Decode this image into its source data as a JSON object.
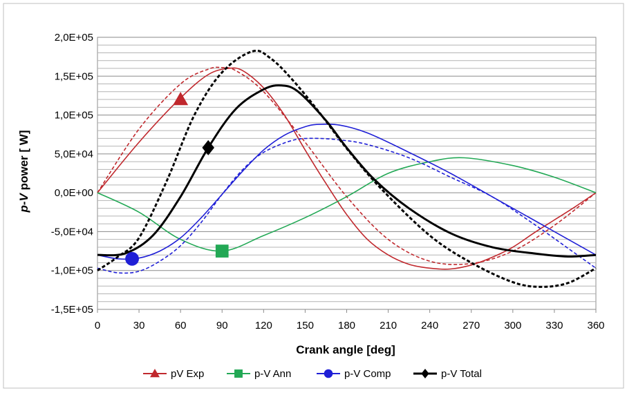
{
  "chart_data": {
    "type": "line",
    "xlabel": "Crank angle [deg]",
    "ylabel_italic": "p-V",
    "ylabel_rest": " power [ W]",
    "xlim": [
      0,
      360
    ],
    "ylim": [
      -150000,
      200000
    ],
    "x_ticks": [
      0,
      30,
      60,
      90,
      120,
      150,
      180,
      210,
      240,
      270,
      300,
      330,
      360
    ],
    "x_tick_labels": [
      "0",
      "30",
      "60",
      "90",
      "120",
      "150",
      "180",
      "210",
      "240",
      "270",
      "300",
      "330",
      "360"
    ],
    "y_ticks": [
      -150000,
      -100000,
      -50000,
      0,
      50000,
      100000,
      150000,
      200000
    ],
    "y_tick_labels": [
      "-1,5E+05",
      "-1,0E+05",
      "-5,0E+04",
      "0,0E+00",
      "5,0E+04",
      "1,0E+05",
      "1,5E+05",
      "2,0E+05"
    ],
    "minor_grid_step": 10000,
    "grid": true,
    "legend_position": "bottom",
    "series": [
      {
        "name": "pV Exp",
        "color": "#c0282d",
        "marker": "triangle",
        "marker_point": [
          60,
          120000
        ],
        "solid": [
          [
            0,
            0
          ],
          [
            30,
            65000
          ],
          [
            60,
            122000
          ],
          [
            80,
            152000
          ],
          [
            95,
            160000
          ],
          [
            105,
            157000
          ],
          [
            120,
            135000
          ],
          [
            135,
            100000
          ],
          [
            150,
            55000
          ],
          [
            165,
            12000
          ],
          [
            180,
            -28000
          ],
          [
            195,
            -60000
          ],
          [
            210,
            -80000
          ],
          [
            225,
            -92000
          ],
          [
            240,
            -97000
          ],
          [
            255,
            -98000
          ],
          [
            270,
            -93000
          ],
          [
            285,
            -83000
          ],
          [
            300,
            -70000
          ],
          [
            315,
            -52000
          ],
          [
            330,
            -35000
          ],
          [
            345,
            -18000
          ],
          [
            360,
            0
          ]
        ],
        "dashed": [
          [
            0,
            0
          ],
          [
            30,
            82000
          ],
          [
            60,
            140000
          ],
          [
            80,
            159000
          ],
          [
            90,
            161000
          ],
          [
            100,
            157000
          ],
          [
            120,
            130000
          ],
          [
            150,
            65000
          ],
          [
            180,
            -5000
          ],
          [
            210,
            -60000
          ],
          [
            240,
            -88000
          ],
          [
            270,
            -91000
          ],
          [
            300,
            -75000
          ],
          [
            330,
            -42000
          ],
          [
            360,
            0
          ]
        ]
      },
      {
        "name": "p-V Ann",
        "color": "#22a855",
        "marker": "square",
        "marker_point": [
          90,
          -75000
        ],
        "solid": [
          [
            0,
            0
          ],
          [
            30,
            -25000
          ],
          [
            60,
            -60000
          ],
          [
            90,
            -75000
          ],
          [
            120,
            -55000
          ],
          [
            150,
            -32000
          ],
          [
            180,
            -5000
          ],
          [
            210,
            25000
          ],
          [
            240,
            40000
          ],
          [
            265,
            45000
          ],
          [
            300,
            35000
          ],
          [
            330,
            20000
          ],
          [
            360,
            0
          ]
        ]
      },
      {
        "name": "p-V Comp",
        "color": "#1f1fd6",
        "marker": "circle",
        "marker_point": [
          25,
          -85000
        ],
        "solid": [
          [
            0,
            -80000
          ],
          [
            15,
            -85000
          ],
          [
            30,
            -84000
          ],
          [
            45,
            -75000
          ],
          [
            60,
            -58000
          ],
          [
            75,
            -32000
          ],
          [
            90,
            -2000
          ],
          [
            105,
            28000
          ],
          [
            120,
            55000
          ],
          [
            135,
            74000
          ],
          [
            150,
            85000
          ],
          [
            160,
            88000
          ],
          [
            175,
            87000
          ],
          [
            195,
            77000
          ],
          [
            225,
            52000
          ],
          [
            255,
            25000
          ],
          [
            285,
            -5000
          ],
          [
            315,
            -35000
          ],
          [
            345,
            -65000
          ],
          [
            360,
            -80000
          ]
        ],
        "dashed": [
          [
            0,
            -97000
          ],
          [
            15,
            -103000
          ],
          [
            30,
            -101000
          ],
          [
            45,
            -88000
          ],
          [
            60,
            -68000
          ],
          [
            75,
            -38000
          ],
          [
            90,
            -2000
          ],
          [
            105,
            30000
          ],
          [
            120,
            52000
          ],
          [
            140,
            67000
          ],
          [
            155,
            70000
          ],
          [
            175,
            68000
          ],
          [
            195,
            62000
          ],
          [
            225,
            45000
          ],
          [
            255,
            20000
          ],
          [
            285,
            -5000
          ],
          [
            315,
            -40000
          ],
          [
            345,
            -78000
          ],
          [
            360,
            -97000
          ]
        ]
      },
      {
        "name": "p-V Total",
        "color": "#000000",
        "marker": "diamond",
        "marker_point": [
          80,
          58000
        ],
        "solid": [
          [
            0,
            -80000
          ],
          [
            20,
            -78000
          ],
          [
            40,
            -55000
          ],
          [
            60,
            -5000
          ],
          [
            80,
            58000
          ],
          [
            100,
            108000
          ],
          [
            120,
            133000
          ],
          [
            133,
            138000
          ],
          [
            145,
            130000
          ],
          [
            165,
            93000
          ],
          [
            180,
            58000
          ],
          [
            200,
            17000
          ],
          [
            225,
            -20000
          ],
          [
            255,
            -52000
          ],
          [
            285,
            -70000
          ],
          [
            315,
            -78000
          ],
          [
            340,
            -82000
          ],
          [
            360,
            -80000
          ]
        ],
        "dashed": [
          [
            0,
            -100000
          ],
          [
            15,
            -82000
          ],
          [
            30,
            -58000
          ],
          [
            50,
            15000
          ],
          [
            70,
            100000
          ],
          [
            90,
            155000
          ],
          [
            112,
            182000
          ],
          [
            125,
            173000
          ],
          [
            140,
            147000
          ],
          [
            160,
            104000
          ],
          [
            180,
            57000
          ],
          [
            205,
            5000
          ],
          [
            240,
            -55000
          ],
          [
            270,
            -90000
          ],
          [
            300,
            -115000
          ],
          [
            320,
            -121000
          ],
          [
            340,
            -116000
          ],
          [
            360,
            -97000
          ]
        ]
      }
    ]
  }
}
